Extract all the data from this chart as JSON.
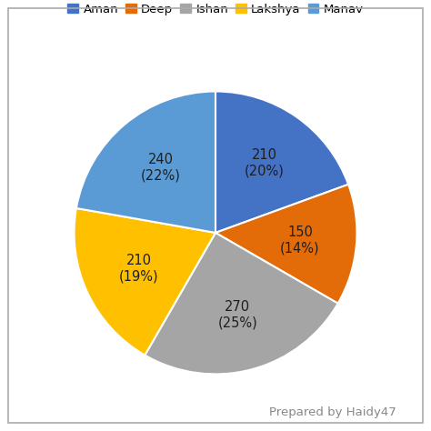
{
  "labels": [
    "Aman",
    "Deep",
    "Ishan",
    "Lakshya",
    "Manav"
  ],
  "values": [
    210,
    150,
    270,
    210,
    240
  ],
  "display_values": [
    "210\n(20%)",
    "150\n(14%)",
    "270\n(25%)",
    "210\n(19%)",
    "240\n(22%)"
  ],
  "colors": [
    "#4472C4",
    "#E36C09",
    "#A5A5A5",
    "#FFC000",
    "#5B9BD5"
  ],
  "legend_colors": [
    "#4472C4",
    "#E36C09",
    "#A5A5A5",
    "#FFC000",
    "#5B9BD5"
  ],
  "background_color": "#FFFFFF",
  "border_color": "#AAAAAA",
  "text_color": "#1F1F1F",
  "label_fontsize": 10.5,
  "legend_fontsize": 9.5,
  "watermark": "Prepared by Haidy47",
  "watermark_fontsize": 9.5
}
